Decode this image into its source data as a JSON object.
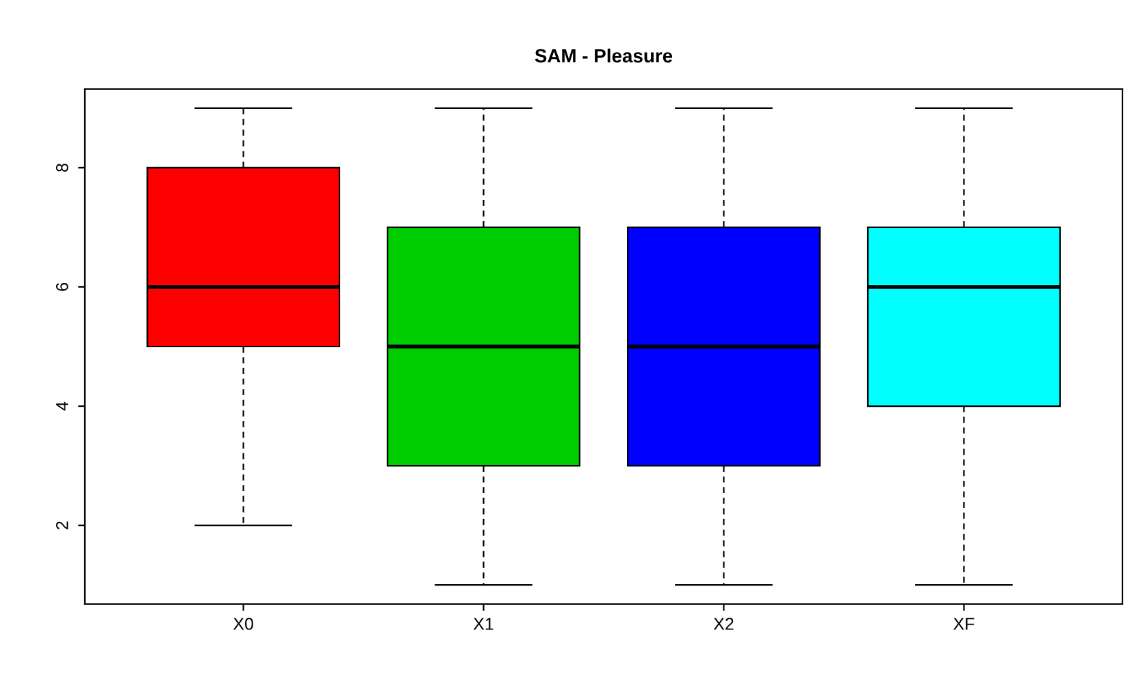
{
  "chart_data": {
    "type": "box",
    "title": "SAM - Pleasure",
    "categories": [
      "X0",
      "X1",
      "X2",
      "XF"
    ],
    "colors": [
      "#ff0000",
      "#00cd00",
      "#0000ff",
      "#00ffff"
    ],
    "boxes": [
      {
        "low": 2,
        "q1": 5,
        "median": 6,
        "q3": 8,
        "high": 9
      },
      {
        "low": 1,
        "q1": 3,
        "median": 5,
        "q3": 7,
        "high": 9
      },
      {
        "low": 1,
        "q1": 3,
        "median": 5,
        "q3": 7,
        "high": 9
      },
      {
        "low": 1,
        "q1": 4,
        "median": 6,
        "q3": 7,
        "high": 9
      }
    ],
    "ylim": [
      0.68,
      9.32
    ],
    "yticks": [
      2,
      4,
      6,
      8
    ],
    "grid": false,
    "legend": false
  }
}
